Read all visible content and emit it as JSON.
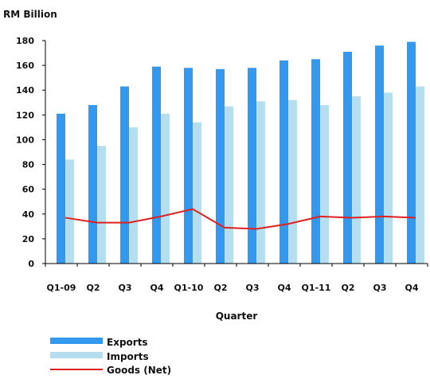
{
  "chart_data": {
    "type": "bar",
    "ylabel": "RM Billion",
    "xlabel": "Quarter",
    "ylim": [
      0,
      180
    ],
    "yticks": [
      0,
      20,
      40,
      60,
      80,
      100,
      120,
      140,
      160,
      180
    ],
    "categories": [
      "Q1-09",
      "Q2",
      "Q3",
      "Q4",
      "Q1-10",
      "Q2",
      "Q3",
      "Q4",
      "Q1-11",
      "Q2",
      "Q3",
      "Q4"
    ],
    "series": [
      {
        "name": "Exports",
        "kind": "bar",
        "color": "#3399ee",
        "values": [
          121,
          128,
          143,
          159,
          158,
          157,
          158,
          164,
          165,
          171,
          176,
          179
        ]
      },
      {
        "name": "Imports",
        "kind": "bar",
        "color": "#b5dff0",
        "values": [
          84,
          95,
          110,
          121,
          114,
          127,
          131,
          132,
          128,
          135,
          138,
          143
        ]
      },
      {
        "name": "Goods (Net)",
        "kind": "line",
        "color": "#e02020",
        "values": [
          37,
          33,
          33,
          38,
          44,
          29,
          28,
          32,
          38,
          37,
          38,
          37
        ]
      }
    ],
    "grid": false,
    "legend_position": "bottom-left"
  }
}
